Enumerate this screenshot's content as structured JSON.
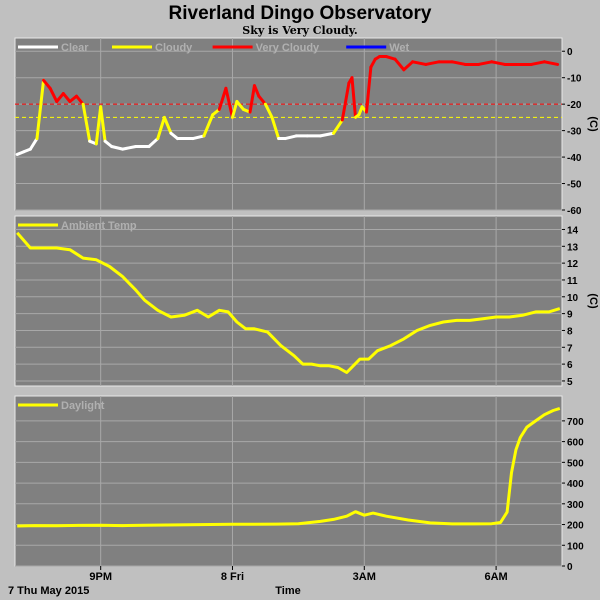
{
  "title": "Riverland Dingo Observatory",
  "subtitle": "Sky is Very Cloudy.",
  "colors": {
    "background": "#c0c0c0",
    "panel": "#808080",
    "grid": "#a8a8a8",
    "clear": "#ffffff",
    "cloudy": "#ffff00",
    "very_cloudy": "#ff0000",
    "wet": "#0000ff",
    "temp": "#ffff00",
    "daylight": "#ffff00"
  },
  "x_axis": {
    "label": "Time",
    "date_label": "7 Thu May 2015",
    "ticks": [
      {
        "x": 21,
        "label": "9PM"
      },
      {
        "x": 24,
        "label": "8 Fri"
      },
      {
        "x": 27,
        "label": "3AM"
      },
      {
        "x": 30,
        "label": "6AM"
      }
    ],
    "range": [
      19.05,
      31.5
    ]
  },
  "chart_data": [
    {
      "type": "line",
      "id": "sky",
      "ylabel": "(C)",
      "ylim": [
        -60,
        5
      ],
      "yticks": [
        0,
        -10,
        -20,
        -30,
        -40,
        -50,
        -60
      ],
      "legend": [
        {
          "name": "Clear",
          "color": "#ffffff"
        },
        {
          "name": "Cloudy",
          "color": "#ffff00"
        },
        {
          "name": "Very Cloudy",
          "color": "#ff0000"
        },
        {
          "name": "Wet",
          "color": "#0000ff"
        }
      ],
      "thresholds": [
        {
          "value": -20,
          "color": "#ff0000"
        },
        {
          "value": -25,
          "color": "#ffff00"
        }
      ],
      "series": [
        {
          "x": [
            19.1,
            19.25,
            19.4,
            19.55,
            19.7,
            19.85,
            20.0,
            20.15,
            20.3,
            20.45,
            20.6,
            20.75,
            20.9,
            21.0,
            21.1,
            21.25,
            21.5,
            21.8,
            22.1,
            22.3,
            22.45,
            22.6,
            22.75,
            22.9,
            23.1,
            23.35,
            23.55,
            23.7,
            23.85,
            24.0,
            24.1,
            24.25,
            24.4,
            24.5,
            24.6,
            24.75,
            24.9,
            25.05,
            25.2,
            25.45,
            25.7,
            26.0,
            26.3,
            26.5,
            26.65,
            26.72,
            26.8,
            26.88,
            26.95,
            27.05,
            27.15,
            27.25,
            27.35,
            27.5,
            27.7,
            27.9,
            28.1,
            28.4,
            28.7,
            29.0,
            29.3,
            29.6,
            29.9,
            30.2,
            30.5,
            30.8,
            31.1,
            31.4
          ],
          "y": [
            -39,
            -38,
            -37,
            -33,
            -11,
            -14,
            -19,
            -16,
            -19,
            -17,
            -20,
            -34,
            -35,
            -21,
            -34,
            -36,
            -37,
            -36,
            -36,
            -33,
            -25,
            -31,
            -33,
            -33,
            -33,
            -32,
            -24,
            -22,
            -14,
            -25,
            -19,
            -22,
            -23,
            -13,
            -17,
            -20,
            -25,
            -33,
            -33,
            -32,
            -32,
            -32,
            -31,
            -26,
            -12,
            -10,
            -25,
            -24,
            -21,
            -23,
            -6,
            -3,
            -2,
            -2,
            -3,
            -7,
            -4,
            -5,
            -4,
            -4,
            -5,
            -5,
            -4,
            -5,
            -5,
            -5,
            -4,
            -5
          ]
        }
      ]
    },
    {
      "type": "line",
      "id": "temp",
      "ylabel": "(C)",
      "ylim": [
        4.7,
        14.8
      ],
      "yticks": [
        14,
        13,
        12,
        11,
        10,
        9,
        8,
        7,
        6,
        5
      ],
      "legend": [
        {
          "name": "Ambient Temp",
          "color": "#ffff00"
        }
      ],
      "series": [
        {
          "name": "Ambient Temp",
          "x": [
            19.1,
            19.4,
            19.7,
            20.0,
            20.3,
            20.6,
            20.9,
            21.2,
            21.5,
            21.8,
            22.0,
            22.3,
            22.6,
            22.9,
            23.2,
            23.45,
            23.7,
            23.9,
            24.1,
            24.3,
            24.5,
            24.8,
            25.1,
            25.4,
            25.6,
            25.8,
            26.0,
            26.2,
            26.4,
            26.6,
            26.75,
            26.9,
            27.1,
            27.3,
            27.6,
            27.9,
            28.2,
            28.5,
            28.8,
            29.1,
            29.4,
            29.7,
            30.0,
            30.3,
            30.6,
            30.9,
            31.2,
            31.45
          ],
          "y": [
            13.8,
            12.9,
            12.9,
            12.9,
            12.8,
            12.3,
            12.2,
            11.8,
            11.2,
            10.4,
            9.8,
            9.2,
            8.8,
            8.9,
            9.2,
            8.8,
            9.2,
            9.1,
            8.5,
            8.1,
            8.1,
            7.9,
            7.1,
            6.5,
            6.0,
            6.0,
            5.9,
            5.9,
            5.8,
            5.5,
            5.9,
            6.3,
            6.3,
            6.8,
            7.1,
            7.5,
            8.0,
            8.3,
            8.5,
            8.6,
            8.6,
            8.7,
            8.8,
            8.8,
            8.9,
            9.1,
            9.1,
            9.3
          ]
        }
      ]
    },
    {
      "type": "line",
      "id": "daylight",
      "ylabel": "",
      "ylim": [
        0,
        820
      ],
      "yticks": [
        700,
        600,
        500,
        400,
        300,
        200,
        100,
        0
      ],
      "legend": [
        {
          "name": "Daylight",
          "color": "#ffff00"
        }
      ],
      "series": [
        {
          "name": "Daylight",
          "x": [
            19.1,
            19.5,
            20.0,
            20.5,
            21.0,
            21.5,
            22.0,
            22.5,
            23.0,
            23.5,
            24.0,
            24.5,
            25.0,
            25.5,
            26.0,
            26.3,
            26.6,
            26.8,
            27.0,
            27.2,
            27.5,
            28.0,
            28.5,
            29.0,
            29.5,
            29.9,
            30.1,
            30.25,
            30.35,
            30.45,
            30.55,
            30.7,
            30.9,
            31.1,
            31.3,
            31.45
          ],
          "y": [
            193,
            195,
            194,
            196,
            197,
            195,
            197,
            198,
            199,
            200,
            201,
            201,
            202,
            204,
            215,
            225,
            240,
            262,
            245,
            255,
            240,
            222,
            208,
            203,
            203,
            204,
            210,
            260,
            450,
            560,
            620,
            670,
            700,
            730,
            750,
            760
          ]
        }
      ]
    }
  ]
}
